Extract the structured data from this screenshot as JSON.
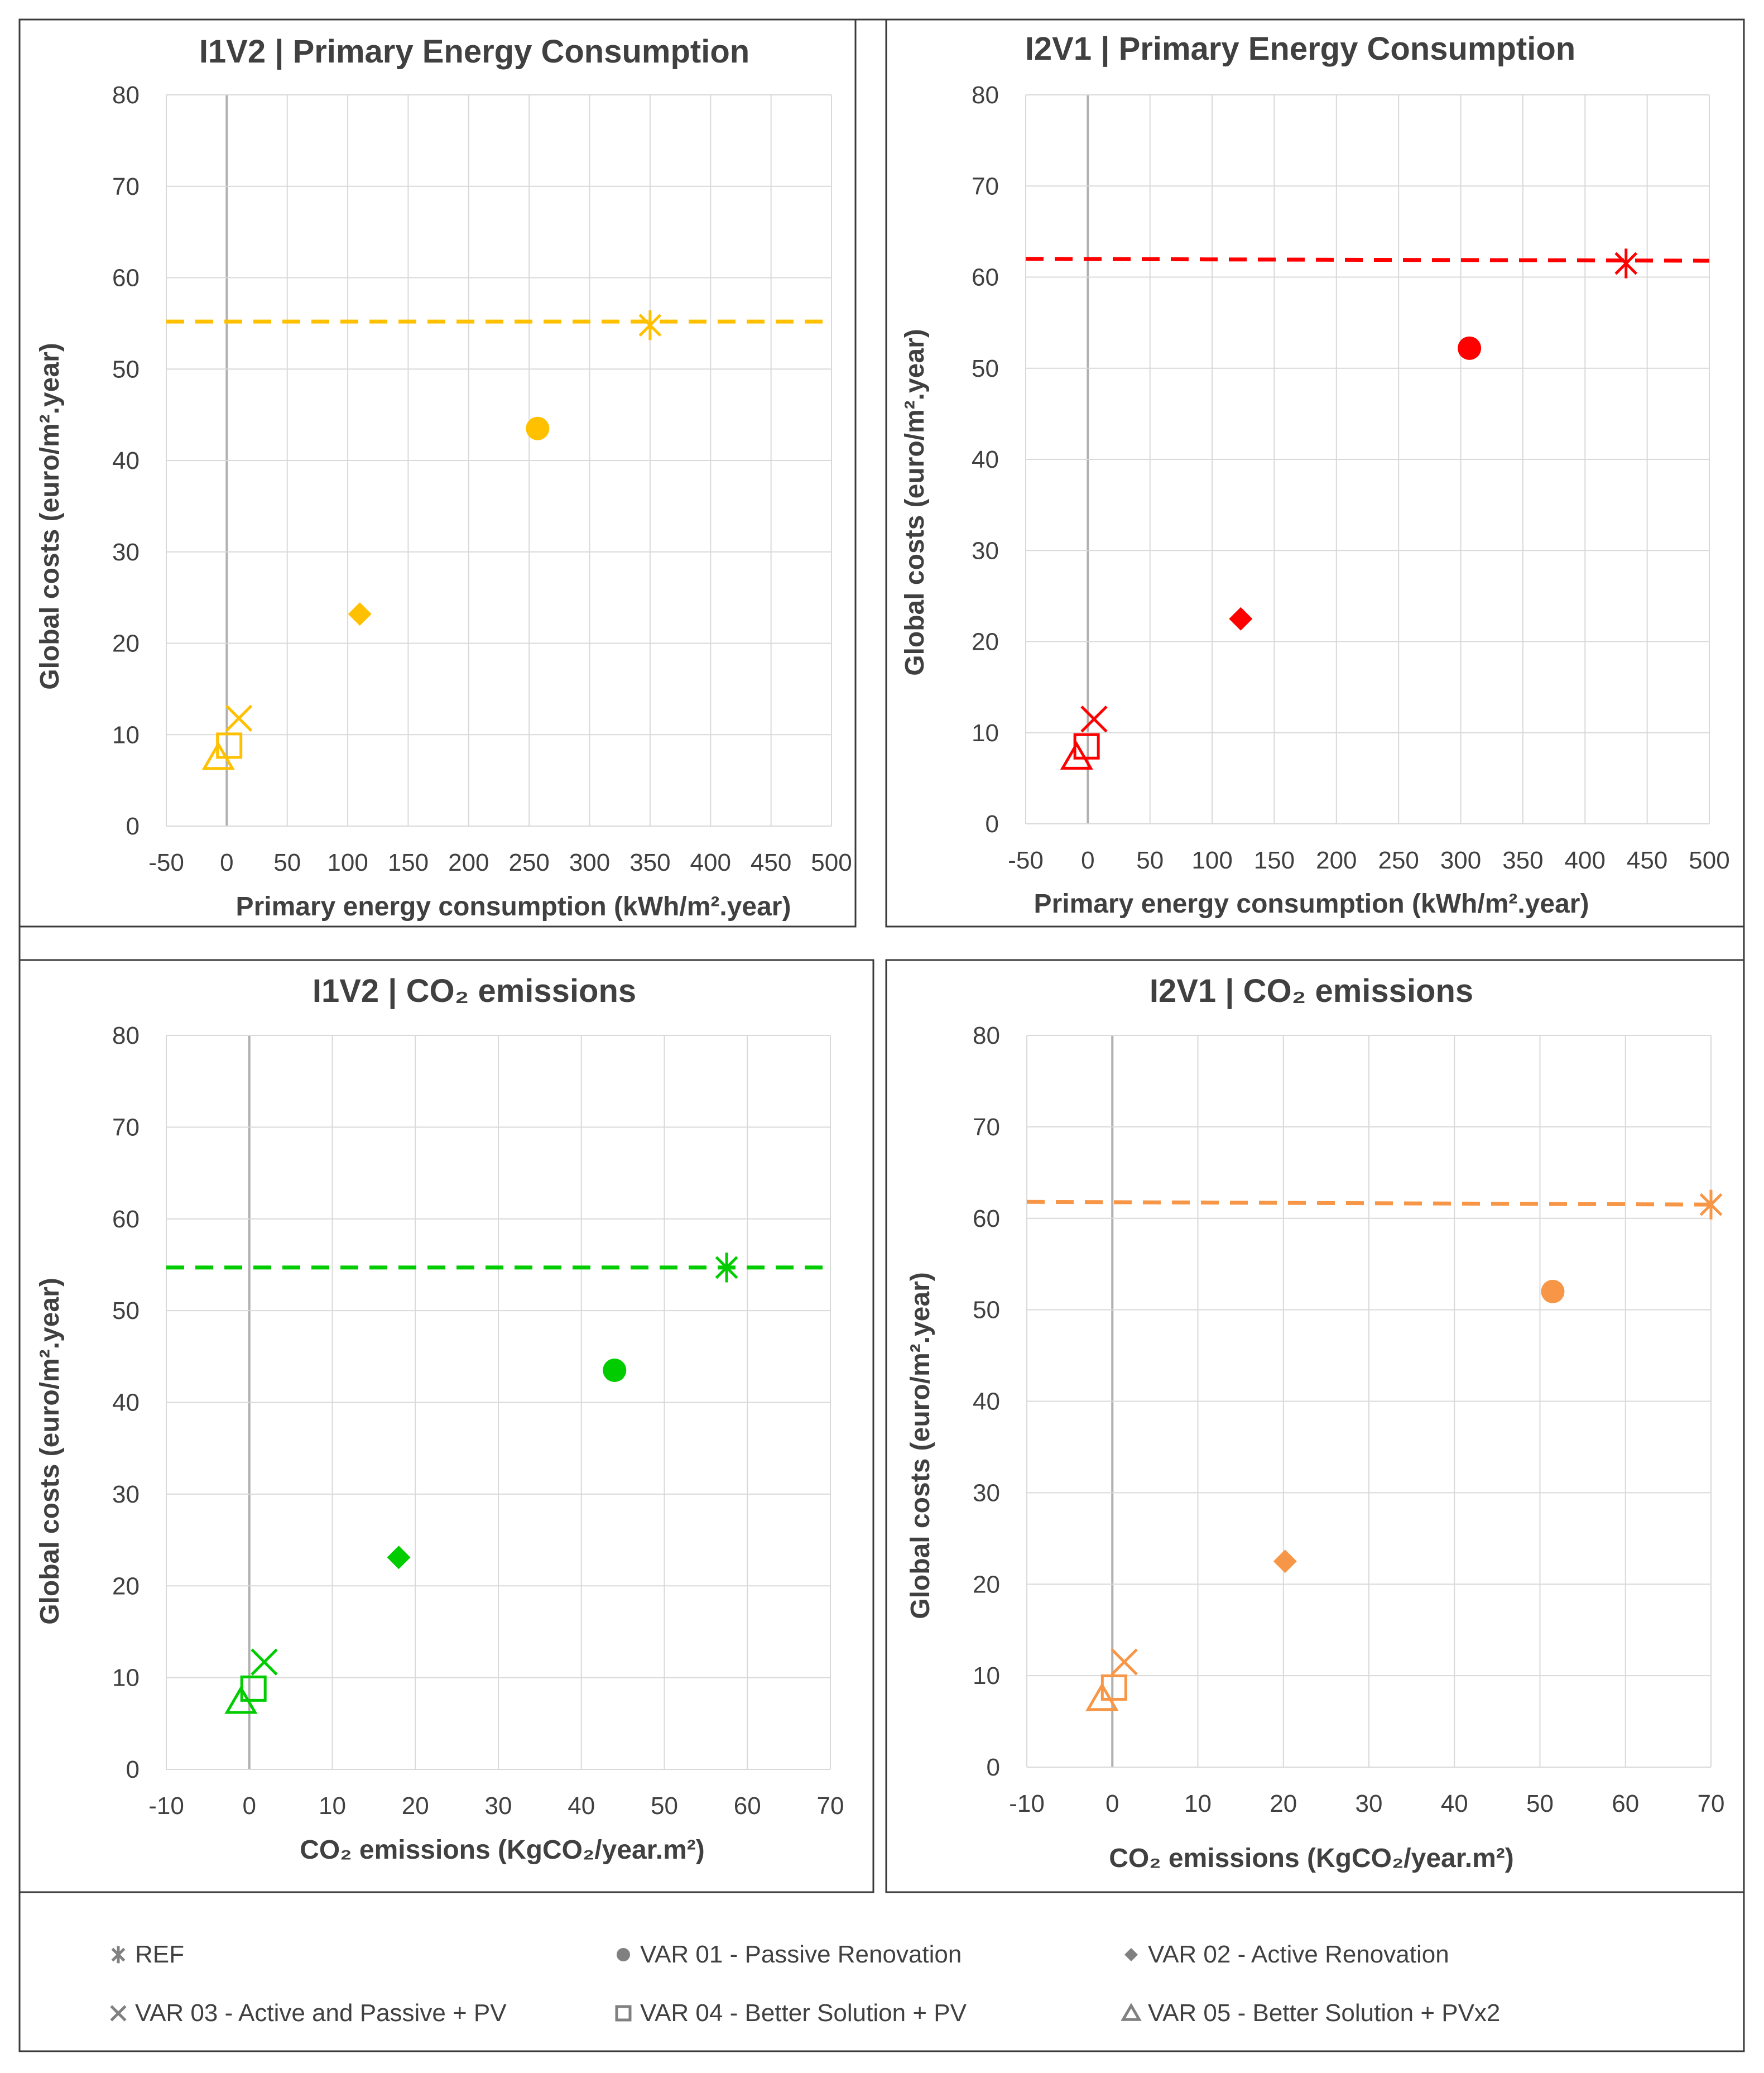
{
  "chart_data": [
    {
      "type": "scatter",
      "title": "I1V2 | Primary Energy Consumption",
      "xlabel": "Primary  energy consumption  (kWh/m².year)",
      "ylabel": "Global costs (euro/m².year)",
      "xlim": [
        -50,
        500
      ],
      "xticks": [
        -50,
        0,
        50,
        100,
        150,
        200,
        250,
        300,
        350,
        400,
        450,
        500
      ],
      "ylim": [
        0,
        80
      ],
      "yticks": [
        0,
        10,
        20,
        30,
        40,
        50,
        60,
        70,
        80
      ],
      "color": "#FFC000",
      "ref_line": {
        "from": [
          -50,
          55.2
        ],
        "to": [
          500,
          55.2
        ]
      },
      "points": [
        {
          "series": "REF",
          "x": 350,
          "y": 54.8,
          "marker": "asterisk"
        },
        {
          "series": "VAR 01 - Passive Renovation",
          "x": 257,
          "y": 43.5,
          "marker": "circle"
        },
        {
          "series": "VAR 02 - Active Renovation",
          "x": 110,
          "y": 23.2,
          "marker": "diamond"
        },
        {
          "series": "VAR 03 - Active and Passive + PV",
          "x": 10,
          "y": 11.8,
          "marker": "x"
        },
        {
          "series": "VAR 04 - Better Solution + PV",
          "x": 2,
          "y": 8.8,
          "marker": "square"
        },
        {
          "series": "VAR 05 - Better Solution + PVx2",
          "x": -7,
          "y": 7.5,
          "marker": "triangle"
        }
      ]
    },
    {
      "type": "scatter",
      "title": "I2V1 | Primary Energy Consumption",
      "xlabel": "Primary  energy consumption  (kWh/m².year)",
      "ylabel": "Global costs (euro/m².year)",
      "xlim": [
        -50,
        500
      ],
      "xticks": [
        -50,
        0,
        50,
        100,
        150,
        200,
        250,
        300,
        350,
        400,
        450,
        500
      ],
      "ylim": [
        0,
        80
      ],
      "yticks": [
        0,
        10,
        20,
        30,
        40,
        50,
        60,
        70,
        80
      ],
      "color": "#FF0000",
      "ref_line": {
        "from": [
          -50,
          62.0
        ],
        "to": [
          500,
          61.8
        ]
      },
      "points": [
        {
          "series": "REF",
          "x": 433,
          "y": 61.5,
          "marker": "asterisk"
        },
        {
          "series": "VAR 01 - Passive Renovation",
          "x": 307,
          "y": 52.2,
          "marker": "circle"
        },
        {
          "series": "VAR 02 - Active Renovation",
          "x": 123,
          "y": 22.5,
          "marker": "diamond"
        },
        {
          "series": "VAR 03 - Active and Passive + PV",
          "x": 5,
          "y": 11.5,
          "marker": "x"
        },
        {
          "series": "VAR 04 - Better Solution + PV",
          "x": -1,
          "y": 8.5,
          "marker": "square"
        },
        {
          "series": "VAR 05 - Better Solution + PVx2",
          "x": -9,
          "y": 7.3,
          "marker": "triangle"
        }
      ]
    },
    {
      "type": "scatter",
      "title": "I1V2 | CO₂ emissions",
      "xlabel": "CO₂ emissions (KgCO₂/year.m²)",
      "ylabel": "Global costs (euro/m².year)",
      "xlim": [
        -10,
        70
      ],
      "xticks": [
        -10,
        0,
        10,
        20,
        30,
        40,
        50,
        60,
        70
      ],
      "ylim": [
        0,
        80
      ],
      "yticks": [
        0,
        10,
        20,
        30,
        40,
        50,
        60,
        70,
        80
      ],
      "color": "#00CC00",
      "ref_line": {
        "from": [
          -10,
          54.7
        ],
        "to": [
          70,
          54.7
        ]
      },
      "points": [
        {
          "series": "REF",
          "x": 57.5,
          "y": 54.7,
          "marker": "asterisk"
        },
        {
          "series": "VAR 01 - Passive Renovation",
          "x": 44,
          "y": 43.5,
          "marker": "circle"
        },
        {
          "series": "VAR 02 - Active Renovation",
          "x": 18,
          "y": 23.1,
          "marker": "diamond"
        },
        {
          "series": "VAR 03 - Active and Passive + PV",
          "x": 1.8,
          "y": 11.7,
          "marker": "x"
        },
        {
          "series": "VAR 04 - Better Solution + PV",
          "x": 0.5,
          "y": 8.8,
          "marker": "square"
        },
        {
          "series": "VAR 05 - Better Solution + PVx2",
          "x": -1,
          "y": 7.4,
          "marker": "triangle"
        }
      ]
    },
    {
      "type": "scatter",
      "title": "I2V1 | CO₂ emissions",
      "xlabel": "CO₂ emissions (KgCO₂/year.m²)",
      "ylabel": "Global costs (euro/m².year)",
      "xlim": [
        -10,
        70
      ],
      "xticks": [
        -10,
        0,
        10,
        20,
        30,
        40,
        50,
        60,
        70
      ],
      "ylim": [
        0,
        80
      ],
      "yticks": [
        0,
        10,
        20,
        30,
        40,
        50,
        60,
        70,
        80
      ],
      "color": "#F79646",
      "ref_line": {
        "from": [
          -10,
          61.8
        ],
        "to": [
          70,
          61.5
        ]
      },
      "points": [
        {
          "series": "REF",
          "x": 70,
          "y": 61.5,
          "marker": "asterisk"
        },
        {
          "series": "VAR 01 - Passive Renovation",
          "x": 51.5,
          "y": 52,
          "marker": "circle"
        },
        {
          "series": "VAR 02 - Active Renovation",
          "x": 20.2,
          "y": 22.5,
          "marker": "diamond"
        },
        {
          "series": "VAR 03 - Active and Passive + PV",
          "x": 1.4,
          "y": 11.5,
          "marker": "x"
        },
        {
          "series": "VAR 04 - Better Solution + PV",
          "x": 0.2,
          "y": 8.7,
          "marker": "square"
        },
        {
          "series": "VAR 05 - Better Solution + PVx2",
          "x": -1.2,
          "y": 7.5,
          "marker": "triangle"
        }
      ]
    }
  ],
  "legend": {
    "items": [
      {
        "label": "REF",
        "marker": "asterisk"
      },
      {
        "label": "VAR 01 - Passive Renovation",
        "marker": "circle"
      },
      {
        "label": "VAR 02 - Active Renovation",
        "marker": "diamond"
      },
      {
        "label": "VAR 03 - Active and Passive + PV",
        "marker": "x"
      },
      {
        "label": "VAR 04 - Better Solution + PV",
        "marker": "square"
      },
      {
        "label": "VAR 05 - Better Solution + PVx2",
        "marker": "triangle"
      }
    ],
    "color": "#808080"
  }
}
